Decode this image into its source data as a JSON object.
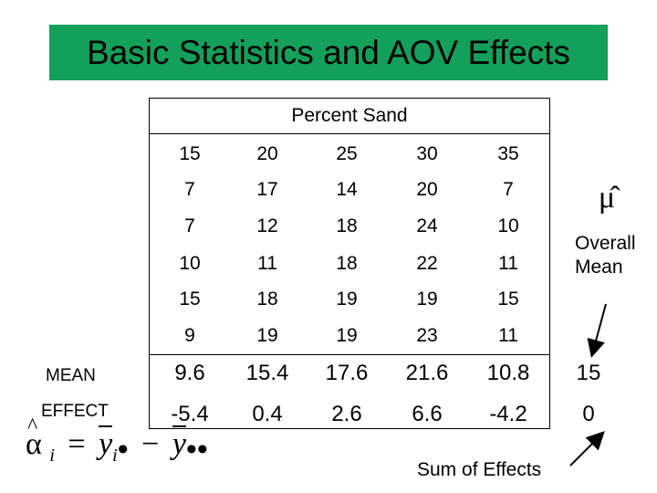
{
  "title": "Basic Statistics and AOV Effects",
  "table": {
    "header": "Percent Sand",
    "columns": [
      "15",
      "20",
      "25",
      "30",
      "35"
    ],
    "rows": [
      [
        "7",
        "17",
        "14",
        "20",
        "7"
      ],
      [
        "7",
        "12",
        "18",
        "24",
        "10"
      ],
      [
        "10",
        "11",
        "18",
        "22",
        "11"
      ],
      [
        "15",
        "18",
        "19",
        "19",
        "15"
      ],
      [
        "9",
        "19",
        "19",
        "23",
        "11"
      ]
    ],
    "mean_label": "MEAN",
    "means": [
      "9.6",
      "15.4",
      "17.6",
      "21.6",
      "10.8"
    ],
    "effect_label": "EFFECT",
    "effects": [
      "-5.4",
      "0.4",
      "2.6",
      "6.6",
      "-4.2"
    ]
  },
  "overall": {
    "symbol": "μ̂",
    "label_line1": "Overall",
    "label_line2": "Mean",
    "mean_value": "15",
    "effect_sum": "0"
  },
  "sum_label": "Sum of Effects",
  "formula": {
    "alpha": "α",
    "sub_i": "i",
    "equals": "=",
    "y1": "y",
    "minus": "−",
    "y2": "y"
  },
  "colors": {
    "title_bg": "#14a05a",
    "text": "#000000"
  }
}
